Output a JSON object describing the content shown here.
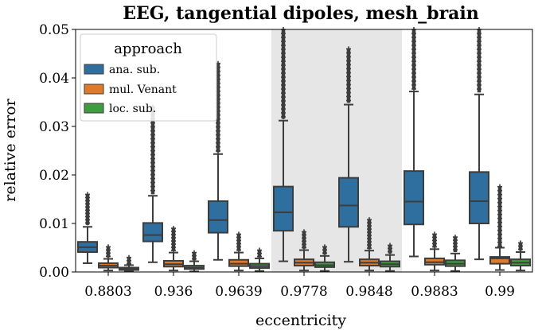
{
  "chart_data": {
    "type": "box",
    "title": "EEG, tangential dipoles, mesh_brain",
    "xlabel": "eccentricity",
    "ylabel": "relative error",
    "ylim": [
      0,
      0.05
    ],
    "yticks": [
      "0.00",
      "0.01",
      "0.02",
      "0.03",
      "0.04",
      "0.05"
    ],
    "ytick_values": [
      0,
      0.01,
      0.02,
      0.03,
      0.04,
      0.05
    ],
    "categories": [
      "0.8803",
      "0.936",
      "0.9639",
      "0.9778",
      "0.9848",
      "0.9883",
      "0.99"
    ],
    "highlighted_categories": [
      "0.9778",
      "0.9848"
    ],
    "legend": {
      "title": "approach",
      "position": "upper-left",
      "entries": [
        {
          "name": "ana. sub.",
          "color": "#2e6fa0"
        },
        {
          "name": "mul. Venant",
          "color": "#df7a2a"
        },
        {
          "name": "loc. sub.",
          "color": "#3f9c3f"
        }
      ]
    },
    "colors": {
      "highlight": "#e6e6e6",
      "box_edge": "#3d3d3d"
    },
    "series": [
      {
        "name": "ana. sub.",
        "boxes": [
          {
            "q1": 0.0041,
            "median": 0.0051,
            "q3": 0.0062,
            "wlo": 0.0018,
            "whi": 0.0093,
            "flo": 0.0097,
            "fhi": 0.016
          },
          {
            "q1": 0.0063,
            "median": 0.0076,
            "q3": 0.0101,
            "wlo": 0.002,
            "whi": 0.0157,
            "flo": 0.016,
            "fhi": 0.034
          },
          {
            "q1": 0.0081,
            "median": 0.0107,
            "q3": 0.0146,
            "wlo": 0.0025,
            "whi": 0.0243,
            "flo": 0.0247,
            "fhi": 0.043
          },
          {
            "q1": 0.0085,
            "median": 0.0123,
            "q3": 0.0176,
            "wlo": 0.0022,
            "whi": 0.0312,
            "flo": 0.0316,
            "fhi": 0.05
          },
          {
            "q1": 0.0093,
            "median": 0.0137,
            "q3": 0.0194,
            "wlo": 0.0021,
            "whi": 0.0345,
            "flo": 0.0349,
            "fhi": 0.046
          },
          {
            "q1": 0.0098,
            "median": 0.0145,
            "q3": 0.0208,
            "wlo": 0.0032,
            "whi": 0.0372,
            "flo": 0.0376,
            "fhi": 0.05
          },
          {
            "q1": 0.01,
            "median": 0.0146,
            "q3": 0.0206,
            "wlo": 0.0026,
            "whi": 0.0366,
            "flo": 0.037,
            "fhi": 0.05
          }
        ]
      },
      {
        "name": "mul. Venant",
        "boxes": [
          {
            "q1": 0.0009,
            "median": 0.0013,
            "q3": 0.0018,
            "wlo": 0.0003,
            "whi": 0.0027,
            "flo": 0.003,
            "fhi": 0.0052
          },
          {
            "q1": 0.0011,
            "median": 0.0016,
            "q3": 0.0023,
            "wlo": 0.0003,
            "whi": 0.004,
            "flo": 0.0043,
            "fhi": 0.009
          },
          {
            "q1": 0.0012,
            "median": 0.0017,
            "q3": 0.0025,
            "wlo": 0.0003,
            "whi": 0.004,
            "flo": 0.0043,
            "fhi": 0.0078
          },
          {
            "q1": 0.0013,
            "median": 0.0019,
            "q3": 0.0026,
            "wlo": 0.0003,
            "whi": 0.0045,
            "flo": 0.0048,
            "fhi": 0.0083
          },
          {
            "q1": 0.0013,
            "median": 0.0019,
            "q3": 0.0026,
            "wlo": 0.0003,
            "whi": 0.0044,
            "flo": 0.0047,
            "fhi": 0.0108
          },
          {
            "q1": 0.0015,
            "median": 0.002,
            "q3": 0.0028,
            "wlo": 0.0003,
            "whi": 0.0047,
            "flo": 0.005,
            "fhi": 0.0078
          },
          {
            "q1": 0.0017,
            "median": 0.0028,
            "q3": 0.0031,
            "wlo": 0.0004,
            "whi": 0.005,
            "flo": 0.0053,
            "fhi": 0.0176
          }
        ]
      },
      {
        "name": "loc. sub.",
        "boxes": [
          {
            "q1": 0.0004,
            "median": 0.0006,
            "q3": 0.0009,
            "wlo": 0.0001,
            "whi": 0.0014,
            "flo": 0.0016,
            "fhi": 0.003
          },
          {
            "q1": 0.0006,
            "median": 0.0009,
            "q3": 0.0013,
            "wlo": 0.0001,
            "whi": 0.0022,
            "flo": 0.0024,
            "fhi": 0.004
          },
          {
            "q1": 0.0008,
            "median": 0.0012,
            "q3": 0.0017,
            "wlo": 0.0002,
            "whi": 0.0028,
            "flo": 0.003,
            "fhi": 0.0045
          },
          {
            "q1": 0.001,
            "median": 0.0014,
            "q3": 0.002,
            "wlo": 0.0002,
            "whi": 0.0033,
            "flo": 0.0036,
            "fhi": 0.0052
          },
          {
            "q1": 0.0011,
            "median": 0.0016,
            "q3": 0.0022,
            "wlo": 0.0002,
            "whi": 0.0035,
            "flo": 0.0038,
            "fhi": 0.0055
          },
          {
            "q1": 0.0012,
            "median": 0.0017,
            "q3": 0.0024,
            "wlo": 0.0002,
            "whi": 0.0038,
            "flo": 0.0041,
            "fhi": 0.0072
          },
          {
            "q1": 0.0013,
            "median": 0.0019,
            "q3": 0.0026,
            "wlo": 0.0003,
            "whi": 0.0041,
            "flo": 0.0044,
            "fhi": 0.006
          }
        ]
      }
    ]
  }
}
